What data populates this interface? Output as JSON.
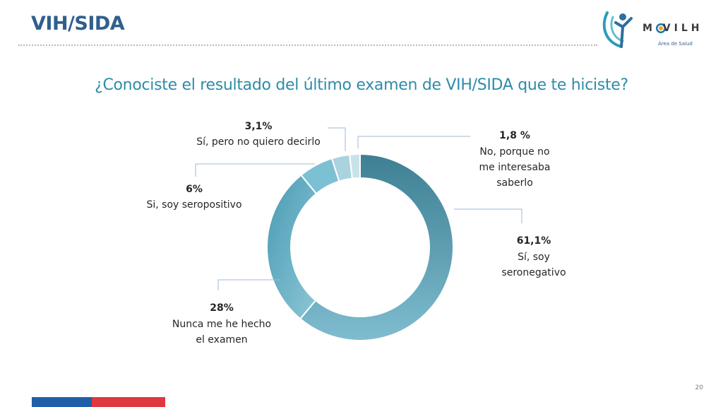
{
  "header": {
    "title": "VIH/SIDA"
  },
  "logo": {
    "word": "M  VILH",
    "subtitle": "Área de Salud"
  },
  "colors": {
    "title": "#2f5f8f",
    "question": "#2e8ca8",
    "footer_blue": "#1f5ea8",
    "footer_red": "#e0383f"
  },
  "footer": {
    "page_number": "20"
  },
  "chart_data": {
    "type": "pie",
    "style": "donut",
    "title": "¿Conociste el resultado del último examen de VIH/SIDA que te hiciste?",
    "slices": [
      {
        "label": "Sí, soy seronegativo",
        "value": 61.1,
        "value_label": "61,1%",
        "color": "#4f93a8"
      },
      {
        "label": "Nunca me he hecho el examen",
        "value": 28,
        "value_label": "28%",
        "color": "#5fa8c0"
      },
      {
        "label": "Si, soy seropositivo",
        "value": 6,
        "value_label": "6%",
        "color": "#7cc0d3"
      },
      {
        "label": "Sí, pero no quiero decirlo",
        "value": 3.1,
        "value_label": "3,1%",
        "color": "#a9d3df"
      },
      {
        "label": "No, porque no me interesaba saberlo",
        "value": 1.8,
        "value_label": "1,8 %",
        "color": "#c9e2ea"
      }
    ]
  }
}
